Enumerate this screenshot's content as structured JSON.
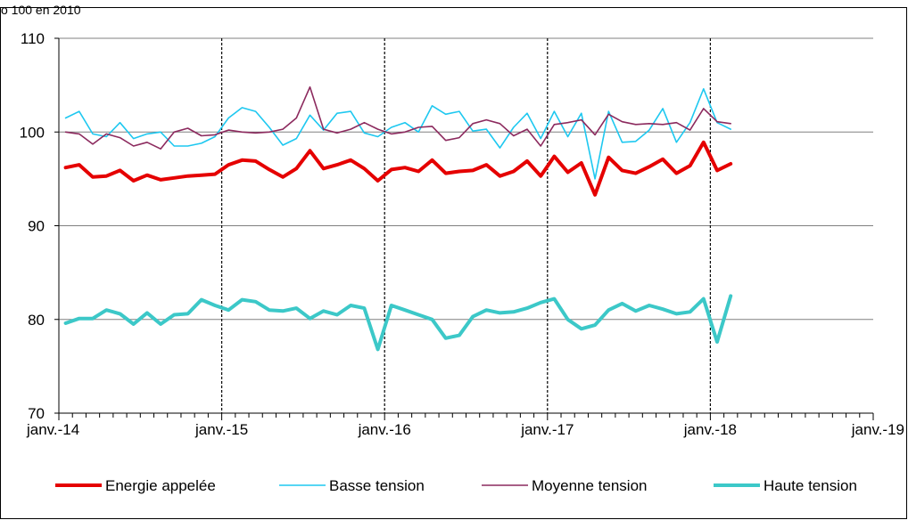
{
  "caption": "o 100 en 2010",
  "chart_data": {
    "type": "line",
    "xlim": [
      "2014-01",
      "2019-01"
    ],
    "ylim": [
      70,
      110
    ],
    "y_ticks": [
      70,
      80,
      90,
      100,
      110
    ],
    "x_tick_labels": [
      "janv.-14",
      "janv.-15",
      "janv.-16",
      "janv.-17",
      "janv.-18",
      "janv.-19"
    ],
    "grid": "horizontal",
    "legend": "bottom",
    "series": [
      {
        "name": "Energie appelée",
        "color": "#e50000",
        "width": 4,
        "values": [
          96.2,
          96.5,
          95.2,
          95.3,
          95.9,
          94.8,
          95.4,
          94.9,
          95.1,
          95.3,
          95.4,
          95.5,
          96.5,
          97.0,
          96.9,
          96.0,
          95.2,
          96.1,
          98.0,
          96.1,
          96.5,
          97.0,
          96.1,
          94.8,
          96.0,
          96.2,
          95.8,
          97.0,
          95.6,
          95.8,
          95.9,
          96.5,
          95.3,
          95.8,
          96.9,
          95.3,
          97.4,
          95.7,
          96.7,
          93.3,
          97.3,
          95.9,
          95.6,
          96.3,
          97.1,
          95.6,
          96.4,
          98.9,
          95.9,
          96.6
        ]
      },
      {
        "name": "Basse tension",
        "color": "#1ec8f0",
        "width": 1.6,
        "values": [
          101.5,
          102.2,
          99.8,
          99.5,
          101.0,
          99.3,
          99.8,
          100.0,
          98.5,
          98.5,
          98.8,
          99.5,
          101.5,
          102.6,
          102.2,
          100.5,
          98.6,
          99.3,
          101.8,
          100.2,
          102.0,
          102.2,
          99.9,
          99.5,
          100.5,
          101.0,
          100.0,
          102.8,
          101.9,
          102.2,
          100.1,
          100.3,
          98.3,
          100.5,
          102.0,
          99.3,
          102.2,
          99.5,
          102.0,
          95.0,
          102.2,
          98.9,
          99.0,
          100.2,
          102.5,
          98.9,
          101.0,
          104.6,
          101.0,
          100.3
        ]
      },
      {
        "name": "Moyenne tension",
        "color": "#8c2a5e",
        "width": 1.6,
        "values": [
          100.0,
          99.8,
          98.7,
          99.8,
          99.4,
          98.5,
          98.9,
          98.2,
          100.0,
          100.4,
          99.6,
          99.7,
          100.2,
          100.0,
          99.9,
          100.0,
          100.3,
          101.5,
          104.8,
          100.3,
          99.9,
          100.3,
          101.0,
          100.3,
          99.8,
          100.0,
          100.5,
          100.6,
          99.1,
          99.4,
          100.9,
          101.3,
          100.9,
          99.6,
          100.3,
          98.5,
          100.8,
          101.0,
          101.3,
          99.7,
          101.9,
          101.1,
          100.8,
          100.9,
          100.8,
          101.0,
          100.2,
          102.5,
          101.1,
          100.9
        ]
      },
      {
        "name": "Haute tension",
        "color": "#3cc8c8",
        "width": 4,
        "values": [
          79.6,
          80.1,
          80.1,
          81.0,
          80.6,
          79.5,
          80.7,
          79.5,
          80.5,
          80.6,
          82.1,
          81.5,
          81.0,
          82.1,
          81.9,
          81.0,
          80.9,
          81.2,
          80.1,
          80.9,
          80.5,
          81.5,
          81.2,
          76.8,
          81.5,
          81.0,
          80.5,
          80.0,
          78.0,
          78.3,
          80.3,
          81.0,
          80.7,
          80.8,
          81.2,
          81.8,
          82.2,
          80.0,
          79.0,
          79.4,
          81.0,
          81.7,
          80.9,
          81.5,
          81.1,
          80.6,
          80.8,
          82.2,
          77.6,
          82.5
        ]
      }
    ]
  }
}
